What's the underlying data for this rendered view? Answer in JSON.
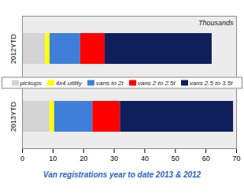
{
  "chart_data": {
    "type": "bar",
    "orientation": "horizontal",
    "stacked": true,
    "title": "Van registrations year to date 2013 & 2012",
    "xlabel": "Thousands",
    "categories": [
      "2012YTD",
      "2013YTD"
    ],
    "series": [
      {
        "name": "pickups",
        "color": "#d4d4d4",
        "values": [
          7.5,
          9
        ]
      },
      {
        "name": "4x4 utility",
        "color": "#ffff00",
        "values": [
          1.5,
          1.5
        ]
      },
      {
        "name": "vans to 2t",
        "color": "#3f7fd9",
        "values": [
          10,
          12.5
        ]
      },
      {
        "name": "vans 2 to 2.5t",
        "color": "#ff0000",
        "values": [
          8,
          9
        ]
      },
      {
        "name": "vans 2.5 to 3.5t",
        "color": "#0f1f5c",
        "values": [
          35,
          37
        ]
      }
    ],
    "xlim": [
      0,
      70
    ],
    "xticks": [
      0,
      10,
      20,
      30,
      40,
      50,
      60,
      70
    ],
    "legend": "center",
    "grid": false
  }
}
